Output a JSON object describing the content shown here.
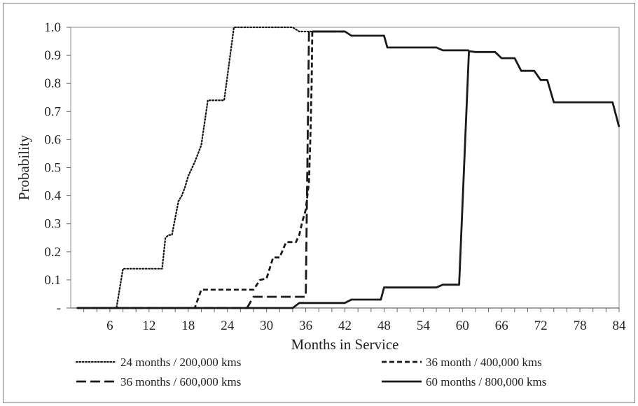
{
  "chart_data": {
    "type": "line",
    "title": "",
    "xlabel": "Months in Service",
    "ylabel": "Probability",
    "xlim": [
      0,
      84
    ],
    "ylim": [
      0,
      1.0
    ],
    "x_ticks": [
      6,
      12,
      18,
      24,
      30,
      36,
      42,
      48,
      54,
      60,
      66,
      72,
      78,
      84
    ],
    "y_ticks": [
      "-",
      "0.1",
      "0.2",
      "0.3",
      "0.4",
      "0.5",
      "0.6",
      "0.7",
      "0.8",
      "0.9",
      "1.0"
    ],
    "grid": false,
    "legend_position": "bottom",
    "series": [
      {
        "name": "24 months / 200,000 kms",
        "dash": "dotted",
        "color": "#1a1a1a",
        "points": [
          [
            1,
            0
          ],
          [
            7,
            0
          ],
          [
            8,
            0.14
          ],
          [
            14,
            0.14
          ],
          [
            14.5,
            0.25
          ],
          [
            15,
            0.26
          ],
          [
            15.5,
            0.26
          ],
          [
            16,
            0.32
          ],
          [
            16.5,
            0.38
          ],
          [
            17,
            0.4
          ],
          [
            17.5,
            0.43
          ],
          [
            18,
            0.47
          ],
          [
            19,
            0.52
          ],
          [
            20,
            0.58
          ],
          [
            21,
            0.74
          ],
          [
            23.5,
            0.74
          ],
          [
            25,
            1.0
          ],
          [
            34,
            1.0
          ],
          [
            35,
            0.985
          ],
          [
            37,
            0.985
          ]
        ]
      },
      {
        "name": "36 month / 400,000 kms",
        "dash": "short-dash",
        "color": "#1a1a1a",
        "points": [
          [
            1,
            0
          ],
          [
            19,
            0
          ],
          [
            20,
            0.065
          ],
          [
            28,
            0.065
          ],
          [
            29,
            0.1
          ],
          [
            30,
            0.105
          ],
          [
            31,
            0.18
          ],
          [
            32,
            0.18
          ],
          [
            33,
            0.235
          ],
          [
            34.5,
            0.235
          ],
          [
            35,
            0.26
          ],
          [
            35.5,
            0.31
          ],
          [
            36,
            0.35
          ],
          [
            36.5,
            0.45
          ],
          [
            36.7,
            0.6
          ],
          [
            36.9,
            0.8
          ],
          [
            37,
            0.985
          ],
          [
            42,
            0.985
          ]
        ]
      },
      {
        "name": "36 months / 600,000 kms",
        "dash": "long-dash",
        "color": "#1a1a1a",
        "points": [
          [
            1,
            0
          ],
          [
            27,
            0
          ],
          [
            28,
            0.04
          ],
          [
            36,
            0.04
          ],
          [
            36.5,
            0.985
          ],
          [
            42,
            0.985
          ]
        ]
      },
      {
        "name": "60 months / 800,000 kms",
        "dash": "solid",
        "color": "#1a1a1a",
        "points": [
          [
            1,
            0
          ],
          [
            34,
            0
          ],
          [
            35,
            0.018
          ],
          [
            42,
            0.018
          ],
          [
            43,
            0.03
          ],
          [
            47.5,
            0.03
          ],
          [
            48,
            0.073
          ],
          [
            56,
            0.073
          ],
          [
            57,
            0.083
          ],
          [
            59.5,
            0.083
          ],
          [
            61,
            0.915
          ],
          [
            62,
            0.912
          ],
          [
            65,
            0.912
          ],
          [
            66,
            0.89
          ],
          [
            68,
            0.89
          ],
          [
            69,
            0.845
          ],
          [
            71,
            0.845
          ],
          [
            72,
            0.812
          ],
          [
            73,
            0.812
          ],
          [
            74,
            0.733
          ],
          [
            83,
            0.733
          ],
          [
            84,
            0.645
          ]
        ]
      }
    ]
  },
  "flat_segments": [
    {
      "series": 1,
      "points": [
        [
          37,
          0.985
        ],
        [
          42,
          0.985
        ],
        [
          43,
          0.97
        ],
        [
          48,
          0.97
        ],
        [
          48.5,
          0.928
        ],
        [
          56,
          0.928
        ],
        [
          57,
          0.918
        ],
        [
          61,
          0.918
        ]
      ]
    }
  ]
}
